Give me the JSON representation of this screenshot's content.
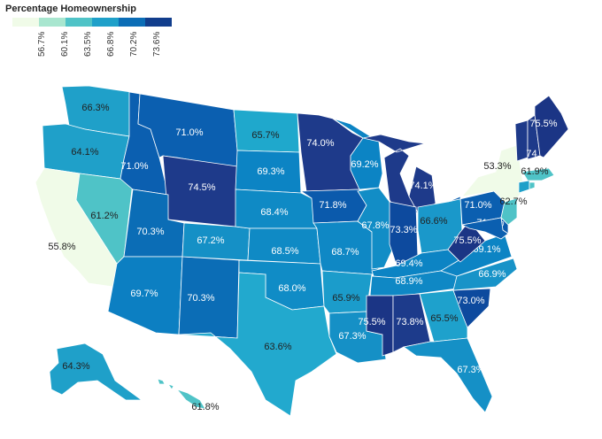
{
  "legend": {
    "title": "Percentage Homeownership",
    "ticks": [
      "56.7%",
      "60.1%",
      "63.5%",
      "66.8%",
      "70.2%",
      "73.6%"
    ],
    "colors": [
      "#f0fbe8",
      "#a8e6cf",
      "#4fc3c7",
      "#1fa0c9",
      "#0b6db6",
      "#113d8c"
    ]
  },
  "states": [
    {
      "id": "WA",
      "value": "66.3%",
      "color": "#1fa0c9"
    },
    {
      "id": "OR",
      "value": "64.1%",
      "color": "#1fa0c9"
    },
    {
      "id": "CA",
      "value": "55.8%",
      "color": "#f0fbe8"
    },
    {
      "id": "NV",
      "value": "61.2%",
      "color": "#4fc3c7"
    },
    {
      "id": "ID",
      "value": "71.0%",
      "color": "#0b5fb0"
    },
    {
      "id": "MT",
      "value": "71.0%",
      "color": "#0b5fb0"
    },
    {
      "id": "WY",
      "value": "74.5%",
      "color": "#1e3a8a"
    },
    {
      "id": "UT",
      "value": "70.3%",
      "color": "#0b6db6"
    },
    {
      "id": "AZ",
      "value": "69.7%",
      "color": "#0c7fc2"
    },
    {
      "id": "NM",
      "value": "70.3%",
      "color": "#0b6db6"
    },
    {
      "id": "CO",
      "value": "67.2%",
      "color": "#1590c6"
    },
    {
      "id": "ND",
      "value": "65.7%",
      "color": "#1fa8cc"
    },
    {
      "id": "SD",
      "value": "69.3%",
      "color": "#0c84c4"
    },
    {
      "id": "NE",
      "value": "68.4%",
      "color": "#0f8ac5"
    },
    {
      "id": "KS",
      "value": "68.5%",
      "color": "#0f8ac5"
    },
    {
      "id": "OK",
      "value": "68.0%",
      "color": "#108cc6"
    },
    {
      "id": "TX",
      "value": "63.6%",
      "color": "#22a9ce"
    },
    {
      "id": "MN",
      "value": "74.0%",
      "color": "#1e3a8a"
    },
    {
      "id": "IA",
      "value": "71.8%",
      "color": "#0b5aac"
    },
    {
      "id": "MO",
      "value": "68.7%",
      "color": "#0f88c5"
    },
    {
      "id": "AR",
      "value": "65.9%",
      "color": "#1b9ccb"
    },
    {
      "id": "LA",
      "value": "67.3%",
      "color": "#1590c6"
    },
    {
      "id": "WI",
      "value": "69.2%",
      "color": "#0c84c4"
    },
    {
      "id": "IL",
      "value": "67.8%",
      "color": "#128dc6"
    },
    {
      "id": "MI",
      "value": "74.1%",
      "color": "#1e3a8a"
    },
    {
      "id": "IN",
      "value": "73.3%",
      "color": "#0d4a9e"
    },
    {
      "id": "OH",
      "value": "66.6%",
      "color": "#1a98ca"
    },
    {
      "id": "KY",
      "value": "69.4%",
      "color": "#0c84c4"
    },
    {
      "id": "TN",
      "value": "68.9%",
      "color": "#0f88c5"
    },
    {
      "id": "MS",
      "value": "75.5%",
      "color": "#1b3585"
    },
    {
      "id": "AL",
      "value": "73.8%",
      "color": "#1d3b8b"
    },
    {
      "id": "GA",
      "value": "65.5%",
      "color": "#1ea1cc"
    },
    {
      "id": "FL",
      "value": "67.3%",
      "color": "#1590c6"
    },
    {
      "id": "SC",
      "value": "73.0%",
      "color": "#0d4a9e"
    },
    {
      "id": "NC",
      "value": "66.9%",
      "color": "#1893c8"
    },
    {
      "id": "VA",
      "value": "69.1%",
      "color": "#0c84c4"
    },
    {
      "id": "WV",
      "value": "75.5%",
      "color": "#1b3585"
    },
    {
      "id": "PA",
      "value": "71.0%",
      "color": "#0b5fb0"
    },
    {
      "id": "NY",
      "value": "53.3%",
      "color": "#f0fbe8"
    },
    {
      "id": "NJ",
      "value": "62.7%",
      "color": "#4fc3c7"
    },
    {
      "id": "DE",
      "value": "71.6%",
      "color": "#0b5aac"
    },
    {
      "id": "MD",
      "value": "",
      "color": "#0b5fb0"
    },
    {
      "id": "CT",
      "value": "",
      "color": "#1fa0c9"
    },
    {
      "id": "MA",
      "value": "61.9%",
      "color": "#4fc3c7"
    },
    {
      "id": "RI",
      "value": "",
      "color": "#4fc3c7"
    },
    {
      "id": "VT",
      "value": "",
      "color": "#1e3a8a"
    },
    {
      "id": "NH",
      "value": "74.3%",
      "color": "#1e3a8a"
    },
    {
      "id": "ME",
      "value": "75.5%",
      "color": "#1b3585"
    },
    {
      "id": "AK",
      "value": "64.3%",
      "color": "#1fa0c9"
    },
    {
      "id": "HI",
      "value": "61.8%",
      "color": "#4fc3c7"
    }
  ]
}
